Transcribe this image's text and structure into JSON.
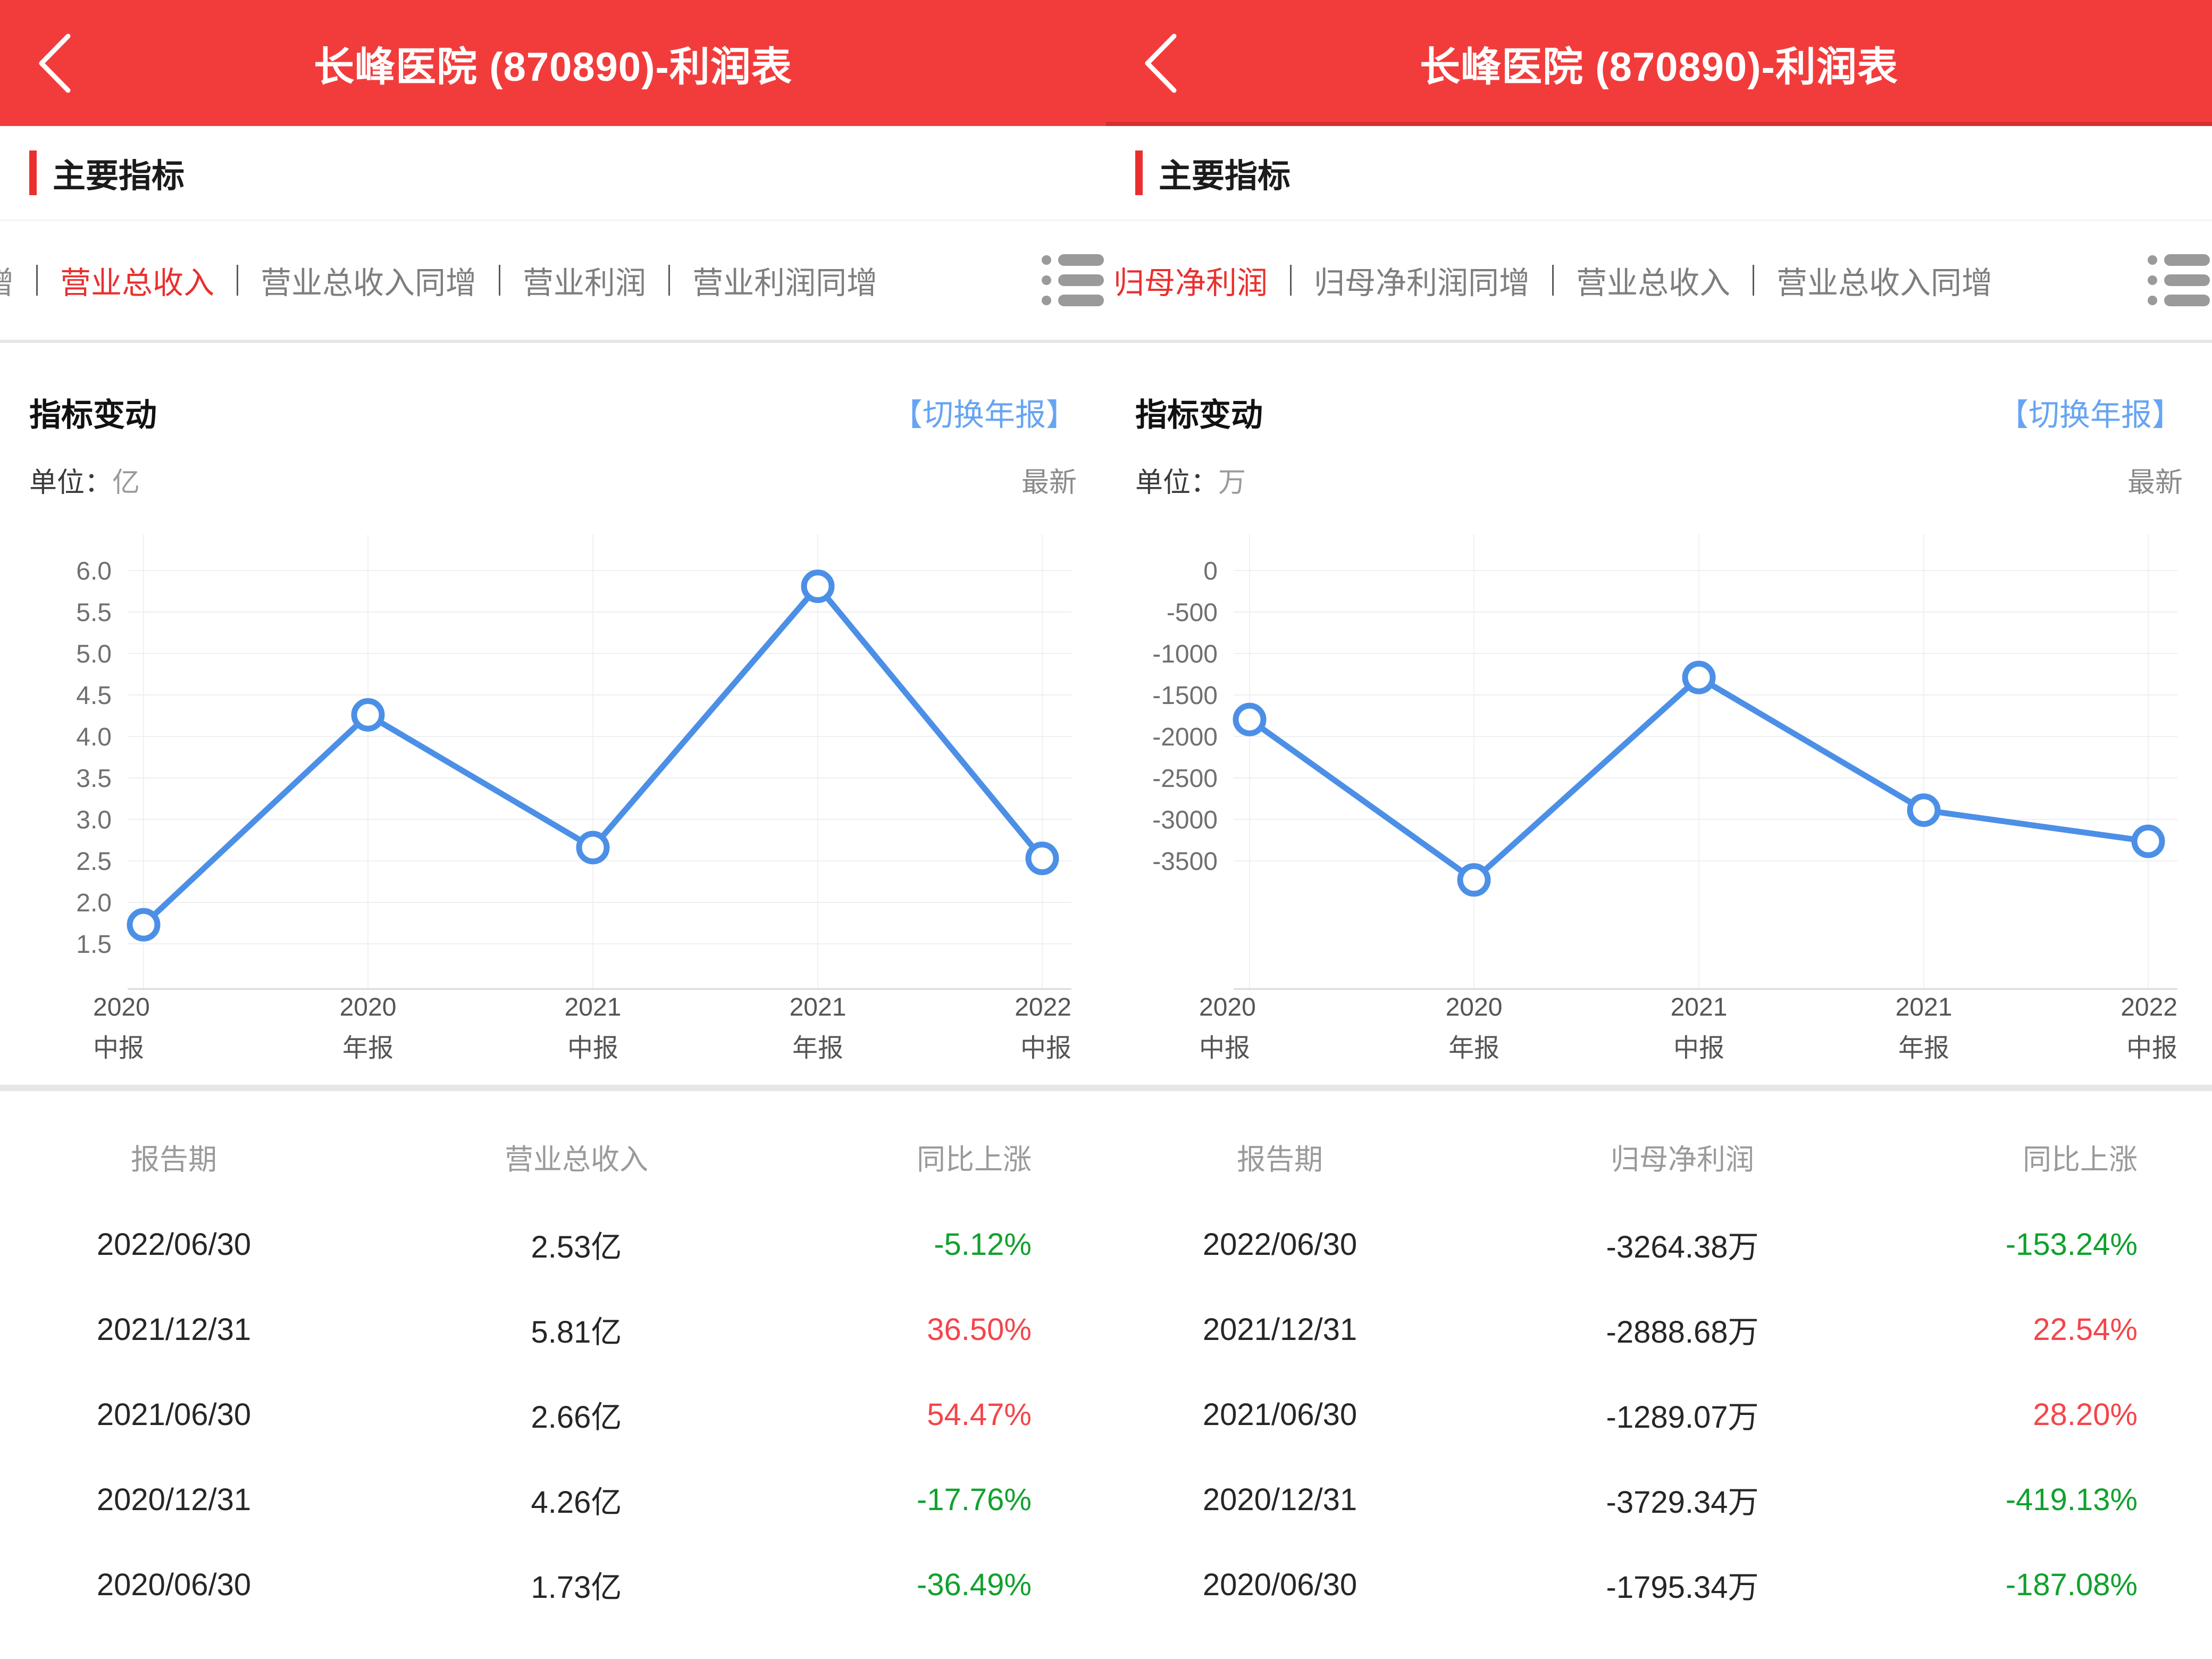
{
  "colors": {
    "header_bg": "#F23C3C",
    "accent_red": "#E9302E",
    "tab_inactive": "#7E7E7E",
    "link_blue": "#66A4F3",
    "line_blue": "#4C8FE6",
    "pct_green": "#11A12E",
    "pct_red": "#F4454A"
  },
  "panels": [
    {
      "header": {
        "title": "长峰医院 (870890)-利润表"
      },
      "section_title": "主要指标",
      "tabs": {
        "overflow_left": "增",
        "items": [
          {
            "label": "营业总收入",
            "active": true
          },
          {
            "label": "营业总收入同增",
            "active": false
          },
          {
            "label": "营业利润",
            "active": false
          },
          {
            "label": "营业利润同增",
            "active": false
          }
        ],
        "menu_icon": "list-menu-icon"
      },
      "indicator": {
        "title": "指标变动",
        "switch_label": "【切换年报】",
        "unit_label": "单位：",
        "unit": "亿",
        "latest_label": "最新"
      },
      "chart_data": {
        "type": "line",
        "title": "指标变动 - 营业总收入",
        "ylabel": "营业总收入(亿)",
        "unit": "亿",
        "categories": [
          [
            "2020",
            "中报"
          ],
          [
            "2020",
            "年报"
          ],
          [
            "2021",
            "中报"
          ],
          [
            "2021",
            "年报"
          ],
          [
            "2022",
            "中报"
          ]
        ],
        "values": [
          1.73,
          4.26,
          2.66,
          5.81,
          2.53
        ],
        "ylim": [
          1.5,
          6.0
        ],
        "ytick_step": 0.5,
        "ytick_labels": [
          "6.0",
          "5.5",
          "5.0",
          "4.5",
          "4.0",
          "3.5",
          "3.0",
          "2.5",
          "2.0",
          "1.5"
        ],
        "grid": true,
        "legend": "none",
        "line_color": "#4C8FE6",
        "marker": "hollow-circle"
      },
      "table": {
        "headers": [
          "报告期",
          "营业总收入",
          "同比上涨"
        ],
        "rows": [
          {
            "date": "2022/06/30",
            "value": "2.53亿",
            "pct": "-5.12%",
            "pct_color": "green"
          },
          {
            "date": "2021/12/31",
            "value": "5.81亿",
            "pct": "36.50%",
            "pct_color": "red"
          },
          {
            "date": "2021/06/30",
            "value": "2.66亿",
            "pct": "54.47%",
            "pct_color": "red"
          },
          {
            "date": "2020/12/31",
            "value": "4.26亿",
            "pct": "-17.76%",
            "pct_color": "green"
          },
          {
            "date": "2020/06/30",
            "value": "1.73亿",
            "pct": "-36.49%",
            "pct_color": "green"
          }
        ]
      }
    },
    {
      "header": {
        "title": "长峰医院 (870890)-利润表"
      },
      "section_title": "主要指标",
      "tabs": {
        "overflow_left": null,
        "items": [
          {
            "label": "归母净利润",
            "active": true
          },
          {
            "label": "归母净利润同增",
            "active": false
          },
          {
            "label": "营业总收入",
            "active": false
          },
          {
            "label": "营业总收入同增",
            "active": false
          }
        ],
        "menu_icon": "list-menu-icon"
      },
      "indicator": {
        "title": "指标变动",
        "switch_label": "【切换年报】",
        "unit_label": "单位：",
        "unit": "万",
        "latest_label": "最新"
      },
      "chart_data": {
        "type": "line",
        "title": "指标变动 - 归母净利润",
        "ylabel": "归母净利润(万)",
        "unit": "万",
        "categories": [
          [
            "2020",
            "中报"
          ],
          [
            "2020",
            "年报"
          ],
          [
            "2021",
            "中报"
          ],
          [
            "2021",
            "年报"
          ],
          [
            "2022",
            "中报"
          ]
        ],
        "values": [
          -1795.34,
          -3729.34,
          -1289.07,
          -2888.68,
          -3264.38
        ],
        "ylim": [
          -3500,
          0
        ],
        "ytick_step": 500,
        "ytick_labels": [
          "0",
          "-500",
          "-1000",
          "-1500",
          "-2000",
          "-2500",
          "-3000",
          "-3500"
        ],
        "grid": true,
        "legend": "none",
        "line_color": "#4C8FE6",
        "marker": "hollow-circle"
      },
      "table": {
        "headers": [
          "报告期",
          "归母净利润",
          "同比上涨"
        ],
        "rows": [
          {
            "date": "2022/06/30",
            "value": "-3264.38万",
            "pct": "-153.24%",
            "pct_color": "green"
          },
          {
            "date": "2021/12/31",
            "value": "-2888.68万",
            "pct": "22.54%",
            "pct_color": "red"
          },
          {
            "date": "2021/06/30",
            "value": "-1289.07万",
            "pct": "28.20%",
            "pct_color": "red"
          },
          {
            "date": "2020/12/31",
            "value": "-3729.34万",
            "pct": "-419.13%",
            "pct_color": "green"
          },
          {
            "date": "2020/06/30",
            "value": "-1795.34万",
            "pct": "-187.08%",
            "pct_color": "green"
          }
        ]
      }
    }
  ]
}
